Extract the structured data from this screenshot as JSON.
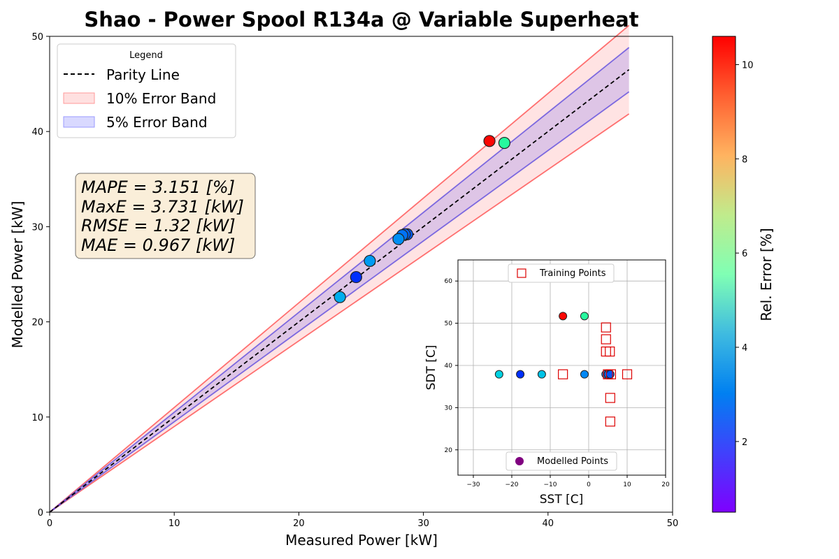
{
  "chart_data": [
    {
      "type": "scatter",
      "title": "Shao - Power Spool R134a @ Variable Superheat",
      "xlabel": "Measured Power [kW]",
      "ylabel": "Modelled Power [kW]",
      "xlim": [
        0,
        50
      ],
      "ylim": [
        0,
        50
      ],
      "xticks": [
        "0",
        "10",
        "20",
        "30",
        "40",
        "50"
      ],
      "yticks": [
        "0",
        "10",
        "20",
        "30",
        "40",
        "50"
      ],
      "grid": false,
      "legend": {
        "title": "Legend",
        "placement": "top-left",
        "entries": [
          "Parity Line",
          "10% Error Band",
          "5% Error Band"
        ]
      },
      "parity_line": {
        "x": [
          0,
          46.5
        ],
        "y": [
          0,
          46.5
        ]
      },
      "error_bands": [
        {
          "name": "10% Error Band",
          "pct": 10,
          "x_end": 46.5,
          "color": "#ff4444"
        },
        {
          "name": "5% Error Band",
          "pct": 5,
          "x_end": 46.5,
          "color": "#5544dd"
        }
      ],
      "metrics": [
        "MAPE = 3.151 [%]",
        "MaxE = 3.731 [kW]",
        "RMSE = 1.32 [kW]",
        "MAE = 0.967 [kW]"
      ],
      "points": [
        {
          "x": 35.3,
          "y": 39.0,
          "err": 10.5
        },
        {
          "x": 36.5,
          "y": 38.8,
          "err": 6.3
        },
        {
          "x": 28.7,
          "y": 29.2,
          "err": 1.7
        },
        {
          "x": 28.5,
          "y": 29.2,
          "err": 1.8
        },
        {
          "x": 28.3,
          "y": 29.1,
          "err": 2.0
        },
        {
          "x": 28.0,
          "y": 28.7,
          "err": 2.4
        },
        {
          "x": 25.7,
          "y": 26.4,
          "err": 2.6
        },
        {
          "x": 24.6,
          "y": 24.7,
          "err": 1.1
        },
        {
          "x": 23.3,
          "y": 22.6,
          "err": 2.9
        }
      ],
      "colorbar": {
        "label": "Rel. Error [%]",
        "ticks": [
          "2",
          "4",
          "6",
          "8",
          "10"
        ],
        "range": [
          0.5,
          10.6
        ],
        "colormap": "rainbow"
      }
    },
    {
      "type": "scatter",
      "xlabel": "SST [C]",
      "ylabel": "SDT [C]",
      "xlim": [
        -34,
        20
      ],
      "ylim": [
        14,
        65
      ],
      "xticks": [
        "−30",
        "−20",
        "−10",
        "0",
        "10",
        "20"
      ],
      "yticks": [
        "20",
        "30",
        "40",
        "50",
        "60"
      ],
      "grid": true,
      "legend_top": "Training Points",
      "legend_bottom": "Modelled Points",
      "training_points": [
        {
          "x": 4.5,
          "y": 49.0
        },
        {
          "x": 4.5,
          "y": 46.2
        },
        {
          "x": 4.5,
          "y": 43.3
        },
        {
          "x": 5.5,
          "y": 43.3
        },
        {
          "x": -6.7,
          "y": 37.9
        },
        {
          "x": 5.0,
          "y": 37.9
        },
        {
          "x": 5.8,
          "y": 37.9
        },
        {
          "x": 10.0,
          "y": 37.9
        },
        {
          "x": 5.6,
          "y": 32.3
        },
        {
          "x": 5.6,
          "y": 26.7
        }
      ],
      "modelled_points": [
        {
          "x": -6.7,
          "y": 51.7,
          "err": 10.5
        },
        {
          "x": -1.1,
          "y": 51.7,
          "err": 6.3
        },
        {
          "x": -23.3,
          "y": 37.9,
          "err": 3.6
        },
        {
          "x": -17.8,
          "y": 37.9,
          "err": 1.1
        },
        {
          "x": -12.2,
          "y": 37.9,
          "err": 3.3
        },
        {
          "x": -1.1,
          "y": 37.9,
          "err": 2.3
        },
        {
          "x": 4.4,
          "y": 37.9,
          "err": 2.4
        },
        {
          "x": 5.0,
          "y": 37.9,
          "err": 1.9
        },
        {
          "x": 5.6,
          "y": 37.9,
          "err": 1.6
        }
      ]
    }
  ]
}
